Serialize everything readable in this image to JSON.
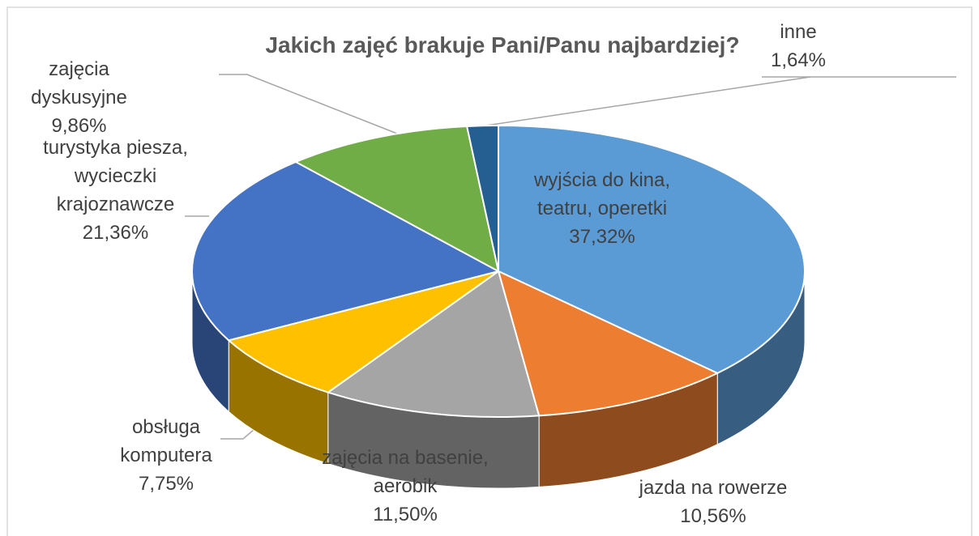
{
  "chart_data": {
    "type": "pie",
    "title": "Jakich zajęć brakuje Pani/Panu najbardziej?",
    "categories": [
      "wyjścia do kina, teatru, operetki",
      "jazda na rowerze",
      "zajęcia na basenie, aerobik",
      "obsługa komputera",
      "turystyka piesza, wycieczki krajoznawcze",
      "zajęcia dyskusyjne",
      "inne"
    ],
    "values": [
      37.32,
      10.56,
      11.5,
      7.75,
      21.36,
      9.86,
      1.64
    ],
    "value_labels": [
      "37,32%",
      "10,56%",
      "11,50%",
      "7,75%",
      "21,36%",
      "9,86%",
      "1,64%"
    ],
    "colors": [
      "#5b9bd5",
      "#ed7d31",
      "#a5a5a5",
      "#ffc000",
      "#4472c4",
      "#70ad47",
      "#255e91"
    ],
    "style": "3d"
  }
}
